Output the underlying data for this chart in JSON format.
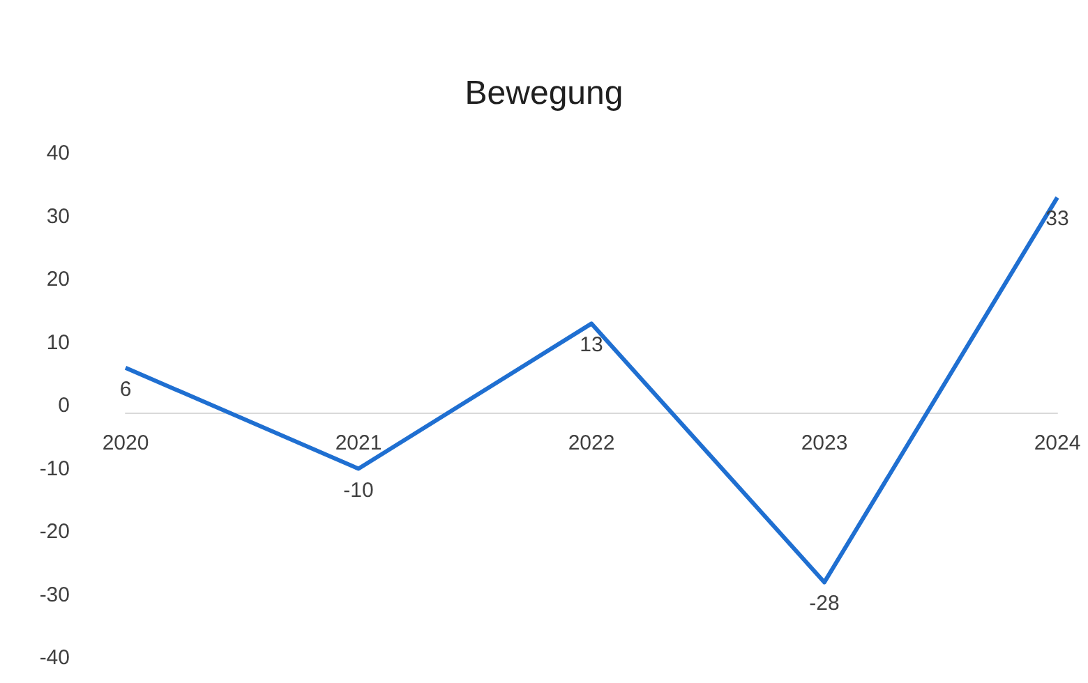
{
  "chart_data": {
    "type": "line",
    "title": "Bewegung",
    "categories": [
      "2020",
      "2021",
      "2022",
      "2023",
      "2024"
    ],
    "series": [
      {
        "color": "#1f6fd1",
        "values": [
          6,
          -10,
          13,
          -28,
          33
        ]
      }
    ],
    "ylim": [
      -40,
      40
    ],
    "yticks": [
      -40,
      -30,
      -20,
      -10,
      0,
      10,
      20,
      30,
      40
    ],
    "grid": false,
    "marker": "none",
    "line_style": "solid",
    "data_labels": true
  }
}
